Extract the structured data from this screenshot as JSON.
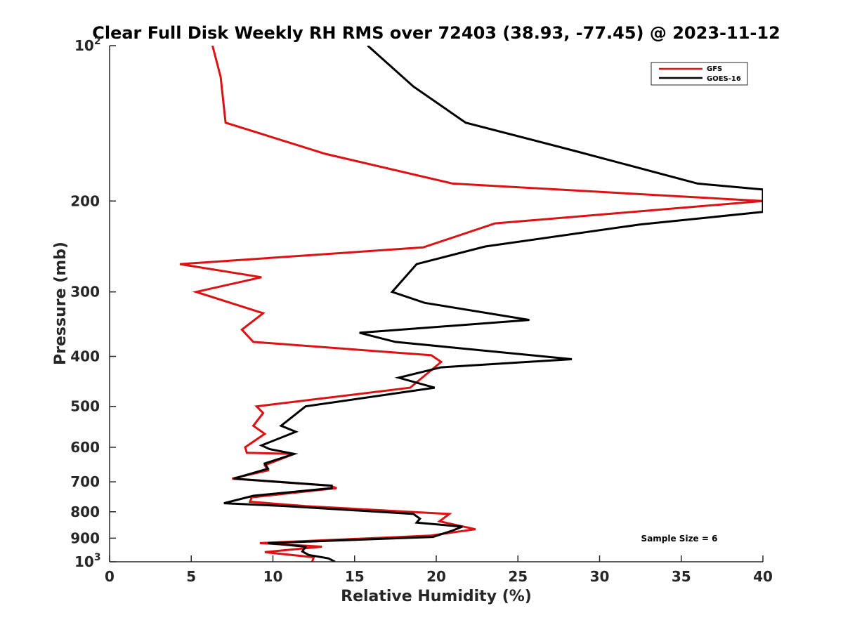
{
  "chart_data": {
    "type": "line",
    "title": "Clear Full Disk Weekly RH RMS over 72403 (38.93, -77.45) @ 2023-11-12",
    "xlabel": "Relative Humidity (%)",
    "ylabel": "Pressure (mb)",
    "xlim": [
      0,
      40
    ],
    "ylim": [
      100,
      1000
    ],
    "y_scale": "log",
    "y_reversed": true,
    "x_ticks": [
      0,
      5,
      10,
      15,
      20,
      25,
      30,
      35,
      40
    ],
    "x_tick_labels": [
      "0",
      "5",
      "10",
      "15",
      "20",
      "25",
      "30",
      "35",
      "40"
    ],
    "y_ticks": [
      {
        "value": 100,
        "base": "10",
        "exp": "2"
      },
      {
        "value": 200,
        "label": "200"
      },
      {
        "value": 300,
        "label": "300"
      },
      {
        "value": 400,
        "label": "400"
      },
      {
        "value": 500,
        "label": "500"
      },
      {
        "value": 600,
        "label": "600"
      },
      {
        "value": 700,
        "label": "700"
      },
      {
        "value": 800,
        "label": "800"
      },
      {
        "value": 900,
        "label": "900"
      },
      {
        "value": 1000,
        "base": "10",
        "exp": "3"
      }
    ],
    "legend_position": "top-right",
    "annotation": "Sample Size = 6",
    "series": [
      {
        "name": "GFS",
        "color": "#dd1111",
        "points": [
          [
            6.3,
            100
          ],
          [
            6.8,
            115
          ],
          [
            7.1,
            141
          ],
          [
            13.2,
            162
          ],
          [
            21.0,
            185
          ],
          [
            40.0,
            200
          ],
          [
            23.6,
            221
          ],
          [
            19.2,
            246
          ],
          [
            4.3,
            265
          ],
          [
            9.3,
            281
          ],
          [
            5.3,
            300
          ],
          [
            9.4,
            330
          ],
          [
            8.1,
            355
          ],
          [
            8.8,
            375
          ],
          [
            19.7,
            398
          ],
          [
            20.3,
            410
          ],
          [
            18.4,
            460
          ],
          [
            9.0,
            500
          ],
          [
            9.4,
            515
          ],
          [
            8.8,
            545
          ],
          [
            9.5,
            565
          ],
          [
            8.3,
            600
          ],
          [
            8.4,
            615
          ],
          [
            11.3,
            618
          ],
          [
            9.5,
            650
          ],
          [
            9.7,
            665
          ],
          [
            7.5,
            690
          ],
          [
            13.5,
            712
          ],
          [
            13.9,
            720
          ],
          [
            8.7,
            750
          ],
          [
            8.6,
            765
          ],
          [
            12.0,
            780
          ],
          [
            20.8,
            808
          ],
          [
            20.2,
            835
          ],
          [
            22.4,
            865
          ],
          [
            19.6,
            890
          ],
          [
            9.2,
            920
          ],
          [
            13.0,
            935
          ],
          [
            9.5,
            958
          ],
          [
            12.5,
            980
          ],
          [
            12.4,
            1000
          ]
        ]
      },
      {
        "name": "GOES-16",
        "color": "#000000",
        "points": [
          [
            15.8,
            100
          ],
          [
            18.6,
            120
          ],
          [
            21.8,
            141
          ],
          [
            28.5,
            160
          ],
          [
            36.0,
            185
          ],
          [
            40.0,
            190
          ],
          [
            40.0,
            210
          ],
          [
            32.5,
            222
          ],
          [
            23.0,
            245
          ],
          [
            18.8,
            265
          ],
          [
            17.3,
            300
          ],
          [
            19.3,
            315
          ],
          [
            25.7,
            340
          ],
          [
            15.3,
            360
          ],
          [
            17.5,
            375
          ],
          [
            28.3,
            405
          ],
          [
            20.3,
            420
          ],
          [
            17.7,
            440
          ],
          [
            19.9,
            460
          ],
          [
            12.0,
            500
          ],
          [
            10.5,
            545
          ],
          [
            11.4,
            560
          ],
          [
            9.3,
            595
          ],
          [
            9.8,
            605
          ],
          [
            11.3,
            618
          ],
          [
            9.5,
            645
          ],
          [
            9.7,
            660
          ],
          [
            7.6,
            690
          ],
          [
            13.6,
            712
          ],
          [
            13.6,
            720
          ],
          [
            8.8,
            745
          ],
          [
            7.0,
            770
          ],
          [
            10.8,
            780
          ],
          [
            18.6,
            808
          ],
          [
            19.0,
            825
          ],
          [
            18.8,
            840
          ],
          [
            21.6,
            855
          ],
          [
            21.0,
            870
          ],
          [
            19.8,
            895
          ],
          [
            9.7,
            920
          ],
          [
            12.0,
            935
          ],
          [
            11.8,
            955
          ],
          [
            12.2,
            970
          ],
          [
            13.4,
            985
          ],
          [
            13.8,
            1000
          ]
        ]
      }
    ]
  }
}
